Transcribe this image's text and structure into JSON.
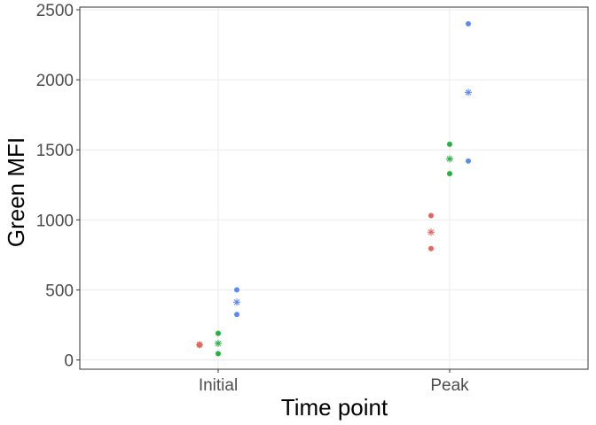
{
  "chart_data": {
    "type": "scatter",
    "xlabel": "Time point",
    "ylabel": "Green MFI",
    "categories": [
      "Initial",
      "Peak"
    ],
    "ylim": [
      -60,
      2530
    ],
    "yticks": [
      0,
      500,
      1000,
      1500,
      2000,
      2500
    ],
    "grid": true,
    "legend": "none",
    "series": [
      {
        "color": "#E8645E",
        "points": [
          {
            "x": "Initial",
            "y": 105
          },
          {
            "x": "Initial",
            "y": 110
          },
          {
            "x": "Peak",
            "y": 1030
          },
          {
            "x": "Peak",
            "y": 795
          }
        ],
        "means": [
          {
            "x": "Initial",
            "y": 108
          },
          {
            "x": "Peak",
            "y": 912
          }
        ]
      },
      {
        "color": "#24B33E",
        "points": [
          {
            "x": "Initial",
            "y": 190
          },
          {
            "x": "Initial",
            "y": 45
          },
          {
            "x": "Peak",
            "y": 1540
          },
          {
            "x": "Peak",
            "y": 1330
          }
        ],
        "means": [
          {
            "x": "Initial",
            "y": 118
          },
          {
            "x": "Peak",
            "y": 1435
          }
        ]
      },
      {
        "color": "#5B8BF2",
        "points": [
          {
            "x": "Initial",
            "y": 500
          },
          {
            "x": "Initial",
            "y": 325
          },
          {
            "x": "Peak",
            "y": 2400
          },
          {
            "x": "Peak",
            "y": 1420
          }
        ],
        "means": [
          {
            "x": "Initial",
            "y": 412
          },
          {
            "x": "Peak",
            "y": 1910
          }
        ]
      }
    ]
  }
}
